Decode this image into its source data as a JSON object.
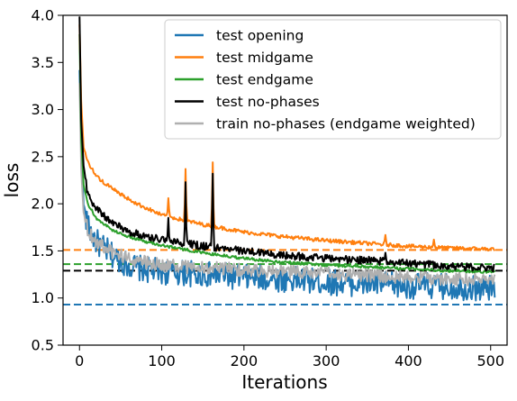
{
  "chart_data": {
    "type": "line",
    "xlabel": "Iterations",
    "ylabel": "loss",
    "xlim": [
      -20,
      520
    ],
    "ylim": [
      0.5,
      4.0
    ],
    "xticks": [
      0,
      100,
      200,
      300,
      400,
      500
    ],
    "yticks": [
      0.5,
      1.0,
      1.5,
      2.0,
      2.5,
      3.0,
      3.5,
      4.0
    ],
    "xtick_labels": [
      "0",
      "100",
      "200",
      "300",
      "400",
      "500"
    ],
    "ytick_labels": [
      "0.5",
      "1.0",
      "1.5",
      "2.0",
      "2.5",
      "3.0",
      "3.5",
      "4.0"
    ],
    "grid": false,
    "legend_position": "top-right",
    "legend": [
      "test opening",
      "test midgame",
      "test endgame",
      "test no-phases",
      "train no-phases (endgame weighted)"
    ],
    "series": [
      {
        "name": "test opening",
        "color": "#1f77b4",
        "noise": 0.14,
        "points": [
          [
            0,
            3.4
          ],
          [
            2,
            2.6
          ],
          [
            5,
            2.0
          ],
          [
            10,
            1.75
          ],
          [
            20,
            1.6
          ],
          [
            40,
            1.45
          ],
          [
            60,
            1.35
          ],
          [
            80,
            1.3
          ],
          [
            100,
            1.28
          ],
          [
            150,
            1.25
          ],
          [
            200,
            1.22
          ],
          [
            250,
            1.2
          ],
          [
            300,
            1.17
          ],
          [
            350,
            1.15
          ],
          [
            400,
            1.13
          ],
          [
            450,
            1.12
          ],
          [
            500,
            1.1
          ],
          [
            505,
            1.1
          ]
        ]
      },
      {
        "name": "test midgame",
        "color": "#ff7f0e",
        "noise": 0.02,
        "points": [
          [
            0,
            3.9
          ],
          [
            2,
            3.1
          ],
          [
            5,
            2.6
          ],
          [
            10,
            2.45
          ],
          [
            20,
            2.3
          ],
          [
            30,
            2.22
          ],
          [
            50,
            2.1
          ],
          [
            70,
            2.0
          ],
          [
            100,
            1.88
          ],
          [
            150,
            1.78
          ],
          [
            200,
            1.7
          ],
          [
            250,
            1.65
          ],
          [
            300,
            1.61
          ],
          [
            350,
            1.58
          ],
          [
            400,
            1.55
          ],
          [
            450,
            1.53
          ],
          [
            500,
            1.52
          ],
          [
            505,
            1.52
          ]
        ],
        "spikes": [
          [
            108,
            2.06
          ],
          [
            129,
            2.37
          ],
          [
            162,
            2.44
          ],
          [
            372,
            1.67
          ],
          [
            431,
            1.62
          ]
        ]
      },
      {
        "name": "test endgame",
        "color": "#2ca02c",
        "noise": 0.015,
        "points": [
          [
            0,
            3.8
          ],
          [
            2,
            2.7
          ],
          [
            5,
            2.2
          ],
          [
            10,
            2.0
          ],
          [
            20,
            1.85
          ],
          [
            40,
            1.72
          ],
          [
            60,
            1.65
          ],
          [
            80,
            1.6
          ],
          [
            100,
            1.56
          ],
          [
            150,
            1.48
          ],
          [
            200,
            1.42
          ],
          [
            250,
            1.38
          ],
          [
            300,
            1.35
          ],
          [
            350,
            1.33
          ],
          [
            400,
            1.31
          ],
          [
            450,
            1.29
          ],
          [
            500,
            1.28
          ],
          [
            505,
            1.28
          ]
        ]
      },
      {
        "name": "test no-phases",
        "color": "#000000",
        "noise": 0.04,
        "points": [
          [
            0,
            4.0
          ],
          [
            2,
            2.9
          ],
          [
            5,
            2.4
          ],
          [
            10,
            2.1
          ],
          [
            20,
            1.95
          ],
          [
            40,
            1.8
          ],
          [
            60,
            1.7
          ],
          [
            80,
            1.66
          ],
          [
            100,
            1.62
          ],
          [
            150,
            1.55
          ],
          [
            200,
            1.5
          ],
          [
            250,
            1.45
          ],
          [
            300,
            1.42
          ],
          [
            350,
            1.4
          ],
          [
            400,
            1.37
          ],
          [
            450,
            1.34
          ],
          [
            500,
            1.32
          ],
          [
            505,
            1.32
          ]
        ],
        "spikes": [
          [
            108,
            1.85
          ],
          [
            129,
            2.23
          ],
          [
            162,
            2.32
          ],
          [
            372,
            1.48
          ]
        ]
      },
      {
        "name": "train no-phases (endgame weighted)",
        "color": "#b0b0b0",
        "noise": 0.07,
        "points": [
          [
            0,
            3.3
          ],
          [
            2,
            2.4
          ],
          [
            5,
            1.9
          ],
          [
            10,
            1.72
          ],
          [
            20,
            1.6
          ],
          [
            40,
            1.48
          ],
          [
            60,
            1.42
          ],
          [
            80,
            1.38
          ],
          [
            100,
            1.35
          ],
          [
            150,
            1.32
          ],
          [
            200,
            1.3
          ],
          [
            250,
            1.28
          ],
          [
            300,
            1.26
          ],
          [
            350,
            1.24
          ],
          [
            400,
            1.22
          ],
          [
            450,
            1.2
          ],
          [
            500,
            1.2
          ],
          [
            505,
            1.2
          ]
        ]
      }
    ],
    "baselines": [
      {
        "series": "test opening",
        "color": "#1f77b4",
        "y": 0.93
      },
      {
        "series": "test midgame",
        "color": "#ff7f0e",
        "y": 1.51
      },
      {
        "series": "test endgame",
        "color": "#2ca02c",
        "y": 1.36
      },
      {
        "series": "test no-phases",
        "color": "#000000",
        "y": 1.29
      }
    ]
  }
}
